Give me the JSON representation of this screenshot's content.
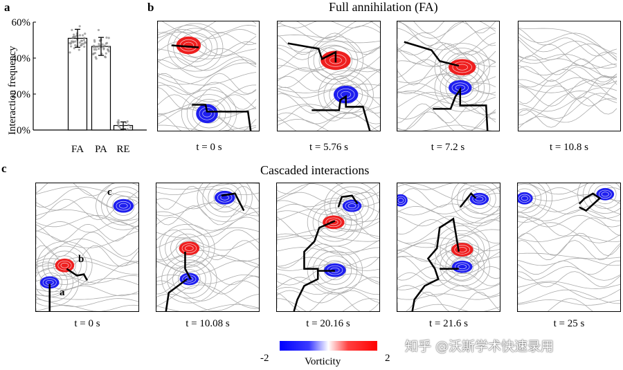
{
  "labels": {
    "a": "a",
    "b": "b",
    "c": "c"
  },
  "panel_a": {
    "ylabel": "Interaction frequency",
    "ytick_labels": [
      "0%",
      "20%",
      "40%",
      "60%"
    ],
    "categories": [
      "FA",
      "PA",
      "RE"
    ]
  },
  "chart_data": {
    "type": "bar",
    "categories": [
      "FA",
      "PA",
      "RE"
    ],
    "values": [
      51,
      46.5,
      2.5
    ],
    "error": [
      5,
      5,
      2
    ],
    "ylim": [
      0,
      60
    ],
    "yticks": [
      0,
      20,
      40,
      60
    ],
    "ylabel": "Interaction frequency",
    "title": ""
  },
  "panel_b": {
    "title": "Full annihilation (FA)",
    "times": [
      "t = 0 s",
      "t = 5.76 s",
      "t = 7.2 s",
      "t = 10.8 s"
    ]
  },
  "panel_c": {
    "title": "Cascaded interactions",
    "times": [
      "t = 0 s",
      "t = 10.08 s",
      "t = 20.16 s",
      "t = 21.6 s",
      "t = 25 s"
    ],
    "vortex_labels": [
      "a",
      "b",
      "c"
    ]
  },
  "colorbar": {
    "min_label": "-2",
    "max_label": "2",
    "label": "Vorticity",
    "colors": [
      "#0000ff",
      "#ffffff",
      "#ff0000"
    ]
  },
  "watermark": "知乎 @沃斯学术快速录用"
}
